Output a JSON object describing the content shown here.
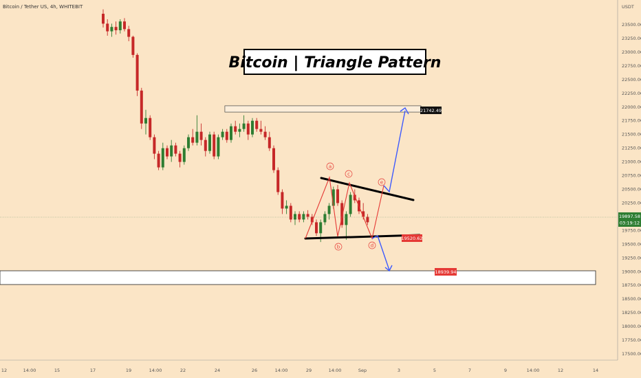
{
  "header": {
    "symbol_line": "Bitcoin / Tether US, 4h, WHITEBIT",
    "currency": "USDT"
  },
  "title": "Bitcoin | Triangle Pattern",
  "colors": {
    "background": "#fbe5c6",
    "up": "#2e7d32",
    "down": "#c62828",
    "wave_line": "#e53935",
    "projection": "#3d5afe",
    "trendline": "#000000",
    "current_price_tag": "#2e7d32",
    "red_tag": "#e53935",
    "black_tag": "#111111"
  },
  "y_axis": {
    "ticks": [
      "23500.00",
      "23250.00",
      "23000.00",
      "22750.00",
      "22500.00",
      "22250.00",
      "22000.00",
      "21750.00",
      "21500.00",
      "21250.00",
      "21000.00",
      "20750.00",
      "20500.00",
      "20250.00",
      "20000.00",
      "19750.00",
      "19500.00",
      "19250.00",
      "19000.00",
      "18750.00",
      "18500.00",
      "18250.00",
      "18000.00",
      "17750.00",
      "17500.00"
    ]
  },
  "x_axis": {
    "ticks": [
      "12",
      "14:00",
      "15",
      "17",
      "19",
      "14:00",
      "22",
      "24",
      "26",
      "14:00",
      "29",
      "14:00",
      "Sep",
      "3",
      "5",
      "7",
      "9",
      "14:00",
      "12",
      "14"
    ]
  },
  "price_tags": {
    "current_price": "19897.58",
    "countdown": "03:19:12",
    "resistance": "21742.49",
    "support": "19520.62",
    "target": "18939.94"
  },
  "wave_labels": [
    "a",
    "b",
    "c",
    "d",
    "e"
  ],
  "chart_data": {
    "type": "candlestick",
    "title": "Bitcoin | Triangle Pattern",
    "symbol": "Bitcoin / Tether US, 4h, WHITEBIT",
    "y_unit": "USDT",
    "ylim": [
      17250,
      23750
    ],
    "grid": false,
    "candles": [
      {
        "o": 23700,
        "h": 23780,
        "l": 23450,
        "c": 23520
      },
      {
        "o": 23520,
        "h": 23600,
        "l": 23300,
        "c": 23380
      },
      {
        "o": 23380,
        "h": 23520,
        "l": 23280,
        "c": 23460
      },
      {
        "o": 23460,
        "h": 23560,
        "l": 23320,
        "c": 23400
      },
      {
        "o": 23400,
        "h": 23600,
        "l": 23340,
        "c": 23560
      },
      {
        "o": 23560,
        "h": 23620,
        "l": 23380,
        "c": 23420
      },
      {
        "o": 23420,
        "h": 23480,
        "l": 23200,
        "c": 23280
      },
      {
        "o": 23280,
        "h": 23300,
        "l": 22900,
        "c": 22950
      },
      {
        "o": 22950,
        "h": 22980,
        "l": 22200,
        "c": 22300
      },
      {
        "o": 22300,
        "h": 22350,
        "l": 21600,
        "c": 21700
      },
      {
        "o": 21700,
        "h": 21950,
        "l": 21500,
        "c": 21800
      },
      {
        "o": 21800,
        "h": 21850,
        "l": 21400,
        "c": 21450
      },
      {
        "o": 21450,
        "h": 21500,
        "l": 21050,
        "c": 21150
      },
      {
        "o": 21150,
        "h": 21200,
        "l": 20850,
        "c": 20900
      },
      {
        "o": 20900,
        "h": 21350,
        "l": 20850,
        "c": 21250
      },
      {
        "o": 21250,
        "h": 21300,
        "l": 21050,
        "c": 21100
      },
      {
        "o": 21100,
        "h": 21400,
        "l": 21000,
        "c": 21300
      },
      {
        "o": 21300,
        "h": 21350,
        "l": 21100,
        "c": 21150
      },
      {
        "o": 21150,
        "h": 21200,
        "l": 20900,
        "c": 21000
      },
      {
        "o": 21000,
        "h": 21300,
        "l": 20950,
        "c": 21250
      },
      {
        "o": 21250,
        "h": 21500,
        "l": 21200,
        "c": 21450
      },
      {
        "o": 21450,
        "h": 21600,
        "l": 21300,
        "c": 21350
      },
      {
        "o": 21350,
        "h": 21850,
        "l": 21300,
        "c": 21550
      },
      {
        "o": 21550,
        "h": 21700,
        "l": 21300,
        "c": 21400
      },
      {
        "o": 21400,
        "h": 21450,
        "l": 21100,
        "c": 21200
      },
      {
        "o": 21200,
        "h": 21550,
        "l": 21150,
        "c": 21500
      },
      {
        "o": 21500,
        "h": 21550,
        "l": 21050,
        "c": 21100
      },
      {
        "o": 21100,
        "h": 21500,
        "l": 21050,
        "c": 21450
      },
      {
        "o": 21450,
        "h": 21600,
        "l": 21400,
        "c": 21550
      },
      {
        "o": 21550,
        "h": 21600,
        "l": 21350,
        "c": 21400
      },
      {
        "o": 21400,
        "h": 21700,
        "l": 21350,
        "c": 21650
      },
      {
        "o": 21650,
        "h": 21750,
        "l": 21500,
        "c": 21550
      },
      {
        "o": 21550,
        "h": 21700,
        "l": 21450,
        "c": 21600
      },
      {
        "o": 21600,
        "h": 21850,
        "l": 21550,
        "c": 21700
      },
      {
        "o": 21700,
        "h": 21750,
        "l": 21400,
        "c": 21500
      },
      {
        "o": 21500,
        "h": 21800,
        "l": 21450,
        "c": 21750
      },
      {
        "o": 21750,
        "h": 21800,
        "l": 21550,
        "c": 21600
      },
      {
        "o": 21600,
        "h": 21750,
        "l": 21500,
        "c": 21550
      },
      {
        "o": 21550,
        "h": 21650,
        "l": 21400,
        "c": 21450
      },
      {
        "o": 21450,
        "h": 21550,
        "l": 21200,
        "c": 21250
      },
      {
        "o": 21250,
        "h": 21300,
        "l": 20800,
        "c": 20850
      },
      {
        "o": 20850,
        "h": 20900,
        "l": 20400,
        "c": 20450
      },
      {
        "o": 20450,
        "h": 20500,
        "l": 20050,
        "c": 20150
      },
      {
        "o": 20150,
        "h": 20300,
        "l": 20050,
        "c": 20200
      },
      {
        "o": 20200,
        "h": 20250,
        "l": 19900,
        "c": 19950
      },
      {
        "o": 19950,
        "h": 20100,
        "l": 19850,
        "c": 20050
      },
      {
        "o": 20050,
        "h": 20100,
        "l": 19900,
        "c": 19950
      },
      {
        "o": 19950,
        "h": 20100,
        "l": 19900,
        "c": 20050
      },
      {
        "o": 20050,
        "h": 20120,
        "l": 19950,
        "c": 20000
      },
      {
        "o": 20000,
        "h": 20050,
        "l": 19850,
        "c": 19900
      },
      {
        "o": 19900,
        "h": 19950,
        "l": 19650,
        "c": 19700
      },
      {
        "o": 19700,
        "h": 19950,
        "l": 19540,
        "c": 19900
      },
      {
        "o": 19900,
        "h": 20100,
        "l": 19850,
        "c": 20050
      },
      {
        "o": 20050,
        "h": 20250,
        "l": 19950,
        "c": 20200
      },
      {
        "o": 20200,
        "h": 20550,
        "l": 20150,
        "c": 20500
      },
      {
        "o": 20500,
        "h": 20580,
        "l": 20200,
        "c": 20250
      },
      {
        "o": 20250,
        "h": 20300,
        "l": 19800,
        "c": 19850
      },
      {
        "o": 19850,
        "h": 20100,
        "l": 19580,
        "c": 20050
      },
      {
        "o": 20050,
        "h": 20450,
        "l": 20000,
        "c": 20400
      },
      {
        "o": 20400,
        "h": 20500,
        "l": 20250,
        "c": 20300
      },
      {
        "o": 20300,
        "h": 20350,
        "l": 20050,
        "c": 20100
      },
      {
        "o": 20100,
        "h": 20250,
        "l": 19950,
        "c": 20000
      },
      {
        "o": 20000,
        "h": 20050,
        "l": 19850,
        "c": 19900
      }
    ]
  }
}
